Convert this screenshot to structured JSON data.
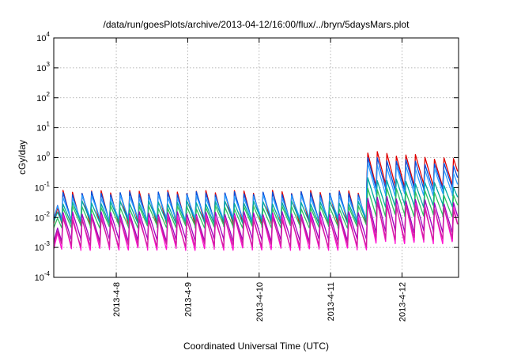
{
  "chart_data": {
    "type": "line",
    "title": "/data/run/goesPlots/archive/2013-04-12/16:00/flux/../bryn/5daysMars.plot",
    "xlabel": "Coordinated Universal Time (UTC)",
    "ylabel": "cGy/day",
    "yscale": "log",
    "ylim": [
      0.0001,
      10000
    ],
    "yticks": [
      {
        "value": 0.0001,
        "base": "10",
        "exp": "-4"
      },
      {
        "value": 0.001,
        "base": "10",
        "exp": "-3"
      },
      {
        "value": 0.01,
        "base": "10",
        "exp": "-2"
      },
      {
        "value": 0.1,
        "base": "10",
        "exp": "-1"
      },
      {
        "value": 1,
        "base": "10",
        "exp": "0"
      },
      {
        "value": 10,
        "base": "10",
        "exp": "1"
      },
      {
        "value": 100,
        "base": "10",
        "exp": "2"
      },
      {
        "value": 1000,
        "base": "10",
        "exp": "3"
      },
      {
        "value": 10000,
        "base": "10",
        "exp": "4"
      }
    ],
    "xlim": [
      "2013-04-07T03:00",
      "2013-04-12T19:00"
    ],
    "xticks": [
      {
        "value": "2013-04-08T00:00",
        "label": "2013-4-8"
      },
      {
        "value": "2013-04-09T00:00",
        "label": "2013-4-9"
      },
      {
        "value": "2013-04-10T00:00",
        "label": "2013-4-10"
      },
      {
        "value": "2013-04-11T00:00",
        "label": "2013-4-11"
      },
      {
        "value": "2013-04-12T00:00",
        "label": "2013-4-12"
      }
    ],
    "grid": true,
    "legend": "none",
    "series": [
      {
        "color": "#e00000",
        "quiet_peak": 0.072,
        "quiet_trough": 0.0065,
        "event_peak": 1.5,
        "event_trough": 0.12
      },
      {
        "color": "#0050e0",
        "quiet_peak": 0.065,
        "quiet_trough": 0.008,
        "event_peak": 0.95,
        "event_trough": 0.09
      },
      {
        "color": "#30a0ff",
        "quiet_peak": 0.05,
        "quiet_trough": 0.009,
        "event_peak": 0.6,
        "event_trough": 0.06
      },
      {
        "color": "#00a8a0",
        "quiet_peak": 0.032,
        "quiet_trough": 0.007,
        "event_peak": 0.2,
        "event_trough": 0.025
      },
      {
        "color": "#30c060",
        "quiet_peak": 0.022,
        "quiet_trough": 0.005,
        "event_peak": 0.1,
        "event_trough": 0.012
      },
      {
        "color": "#a000c0",
        "quiet_peak": 0.014,
        "quiet_trough": 0.0018,
        "event_peak": 0.05,
        "event_trough": 0.0035
      },
      {
        "color": "#ff10d0",
        "quiet_peak": 0.011,
        "quiet_trough": 0.0009,
        "event_peak": 0.035,
        "event_trough": 0.0015
      },
      {
        "color": "#d020a0",
        "quiet_peak": 0.009,
        "quiet_trough": 0.0012,
        "event_peak": 0.03,
        "event_trough": 0.002
      }
    ],
    "cycle_hours": 3.2,
    "event_start": "2013-04-11T12:00"
  }
}
